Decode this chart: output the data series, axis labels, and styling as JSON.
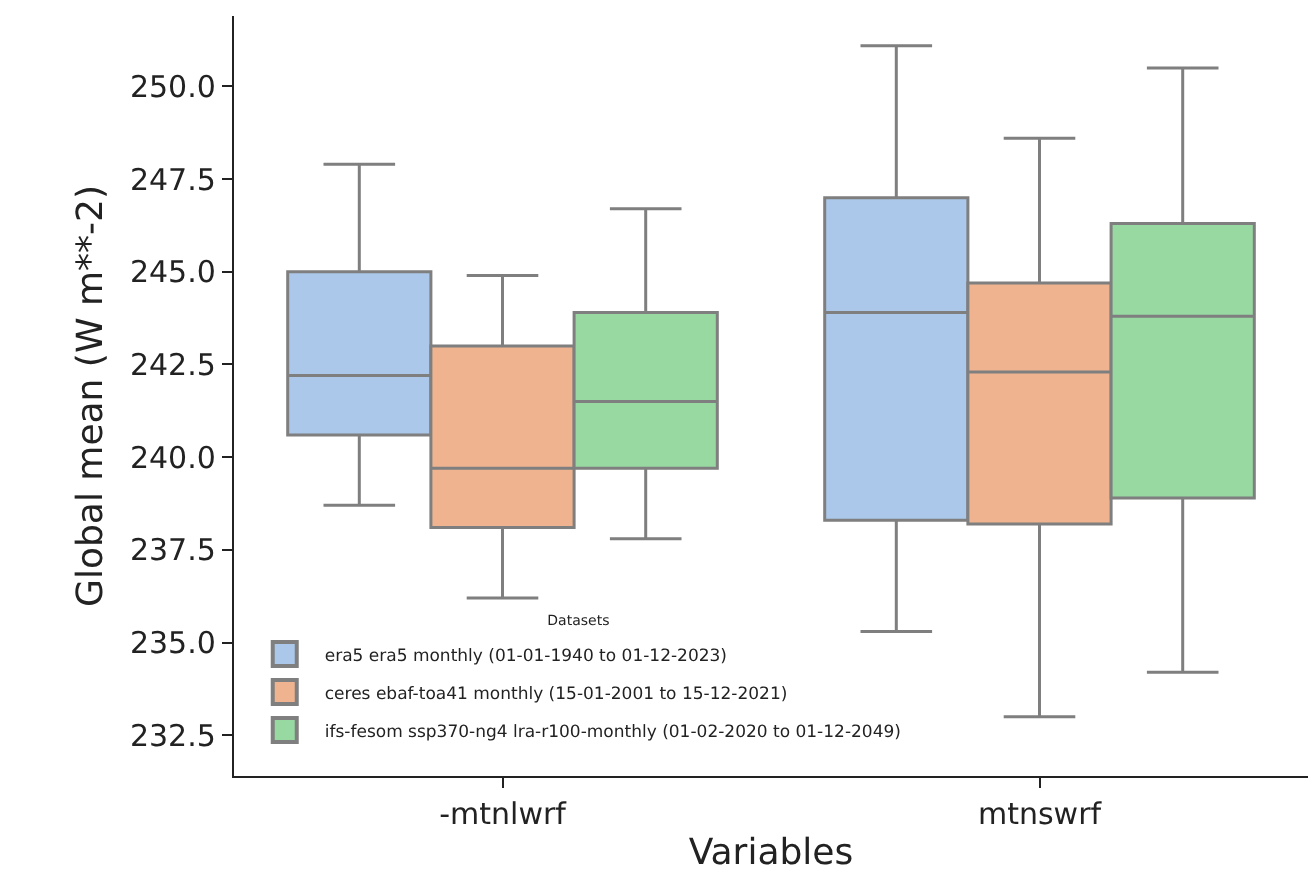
{
  "chart_data": {
    "type": "box",
    "xlabel": "Variables",
    "ylabel": "Global mean (W m**-2)",
    "legend_title": "Datasets",
    "legend": "bottom left",
    "grid": false,
    "categories": [
      "-mtnlwrf",
      "mtnswrf"
    ],
    "ylim": [
      231.4,
      251.9
    ],
    "yticks": [
      232.5,
      {
        "value": 235,
        "label": "235.0"
      },
      237.5,
      {
        "value": 240,
        "label": "240.0"
      },
      242.5,
      {
        "value": 245,
        "label": "245.0"
      },
      247.5,
      {
        "value": 250,
        "label": "250.0"
      }
    ],
    "series": [
      {
        "name": "era5 era5 monthly (01-01-1940 to 01-12-2023)",
        "color": "#abc8ea",
        "boxes": [
          {
            "low": 238.7,
            "q1": 240.6,
            "median": 242.2,
            "q3": 245.0,
            "high": 247.9
          },
          {
            "low": 235.3,
            "q1": 238.3,
            "median": 243.9,
            "q3": 247.0,
            "high": 251.1
          }
        ]
      },
      {
        "name": "ceres ebaf-toa41 monthly (15-01-2001 to 15-12-2021)",
        "color": "#efb48f",
        "boxes": [
          {
            "low": 236.2,
            "q1": 238.1,
            "median": 239.7,
            "q3": 243.0,
            "high": 244.9
          },
          {
            "low": 233.0,
            "q1": 238.2,
            "median": 242.3,
            "q3": 244.7,
            "high": 248.6
          }
        ]
      },
      {
        "name": "ifs-fesom ssp370-ng4 lra-r100-monthly (01-02-2020 to 01-12-2049)",
        "color": "#98d9a2",
        "boxes": [
          {
            "low": 237.8,
            "q1": 239.7,
            "median": 241.5,
            "q3": 243.9,
            "high": 246.7
          },
          {
            "low": 234.2,
            "q1": 238.9,
            "median": 243.8,
            "q3": 246.3,
            "high": 250.5
          }
        ]
      }
    ]
  }
}
